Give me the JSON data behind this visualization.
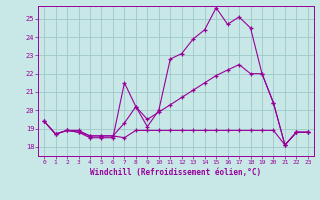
{
  "xlabel": "Windchill (Refroidissement éolien,°C)",
  "xlim": [
    -0.5,
    23.5
  ],
  "ylim": [
    17.5,
    25.7
  ],
  "yticks": [
    18,
    19,
    20,
    21,
    22,
    23,
    24,
    25
  ],
  "xticks": [
    0,
    1,
    2,
    3,
    4,
    5,
    6,
    7,
    8,
    9,
    10,
    11,
    12,
    13,
    14,
    15,
    16,
    17,
    18,
    19,
    20,
    21,
    22,
    23
  ],
  "bg_color": "#c8e8e8",
  "line_color": "#990099",
  "grid_color": "#a0c8c8",
  "lines": [
    {
      "x": [
        0,
        1,
        2,
        3,
        4,
        5,
        6,
        7,
        8,
        9,
        10,
        11,
        12,
        13,
        14,
        15,
        16,
        17,
        18,
        19,
        20,
        21,
        22,
        23
      ],
      "y": [
        19.4,
        18.7,
        18.9,
        18.8,
        18.5,
        18.5,
        18.5,
        21.5,
        20.2,
        19.1,
        20.0,
        22.8,
        23.1,
        23.9,
        24.4,
        25.6,
        24.7,
        25.1,
        24.5,
        22.0,
        20.4,
        18.1,
        18.8,
        18.8
      ]
    },
    {
      "x": [
        0,
        1,
        2,
        3,
        4,
        5,
        6,
        7,
        8,
        9,
        10,
        11,
        12,
        13,
        14,
        15,
        16,
        17,
        18,
        19,
        20,
        21,
        22,
        23
      ],
      "y": [
        19.4,
        18.7,
        18.9,
        18.8,
        18.6,
        18.6,
        18.6,
        19.3,
        20.2,
        19.5,
        19.9,
        20.3,
        20.7,
        21.1,
        21.5,
        21.9,
        22.2,
        22.5,
        22.0,
        22.0,
        20.4,
        18.1,
        18.8,
        18.8
      ]
    },
    {
      "x": [
        0,
        1,
        2,
        3,
        4,
        5,
        6,
        7,
        8,
        9,
        10,
        11,
        12,
        13,
        14,
        15,
        16,
        17,
        18,
        19,
        20,
        21,
        22,
        23
      ],
      "y": [
        19.4,
        18.7,
        18.9,
        18.9,
        18.6,
        18.6,
        18.6,
        18.5,
        18.9,
        18.9,
        18.9,
        18.9,
        18.9,
        18.9,
        18.9,
        18.9,
        18.9,
        18.9,
        18.9,
        18.9,
        18.9,
        18.1,
        18.8,
        18.8
      ]
    }
  ]
}
